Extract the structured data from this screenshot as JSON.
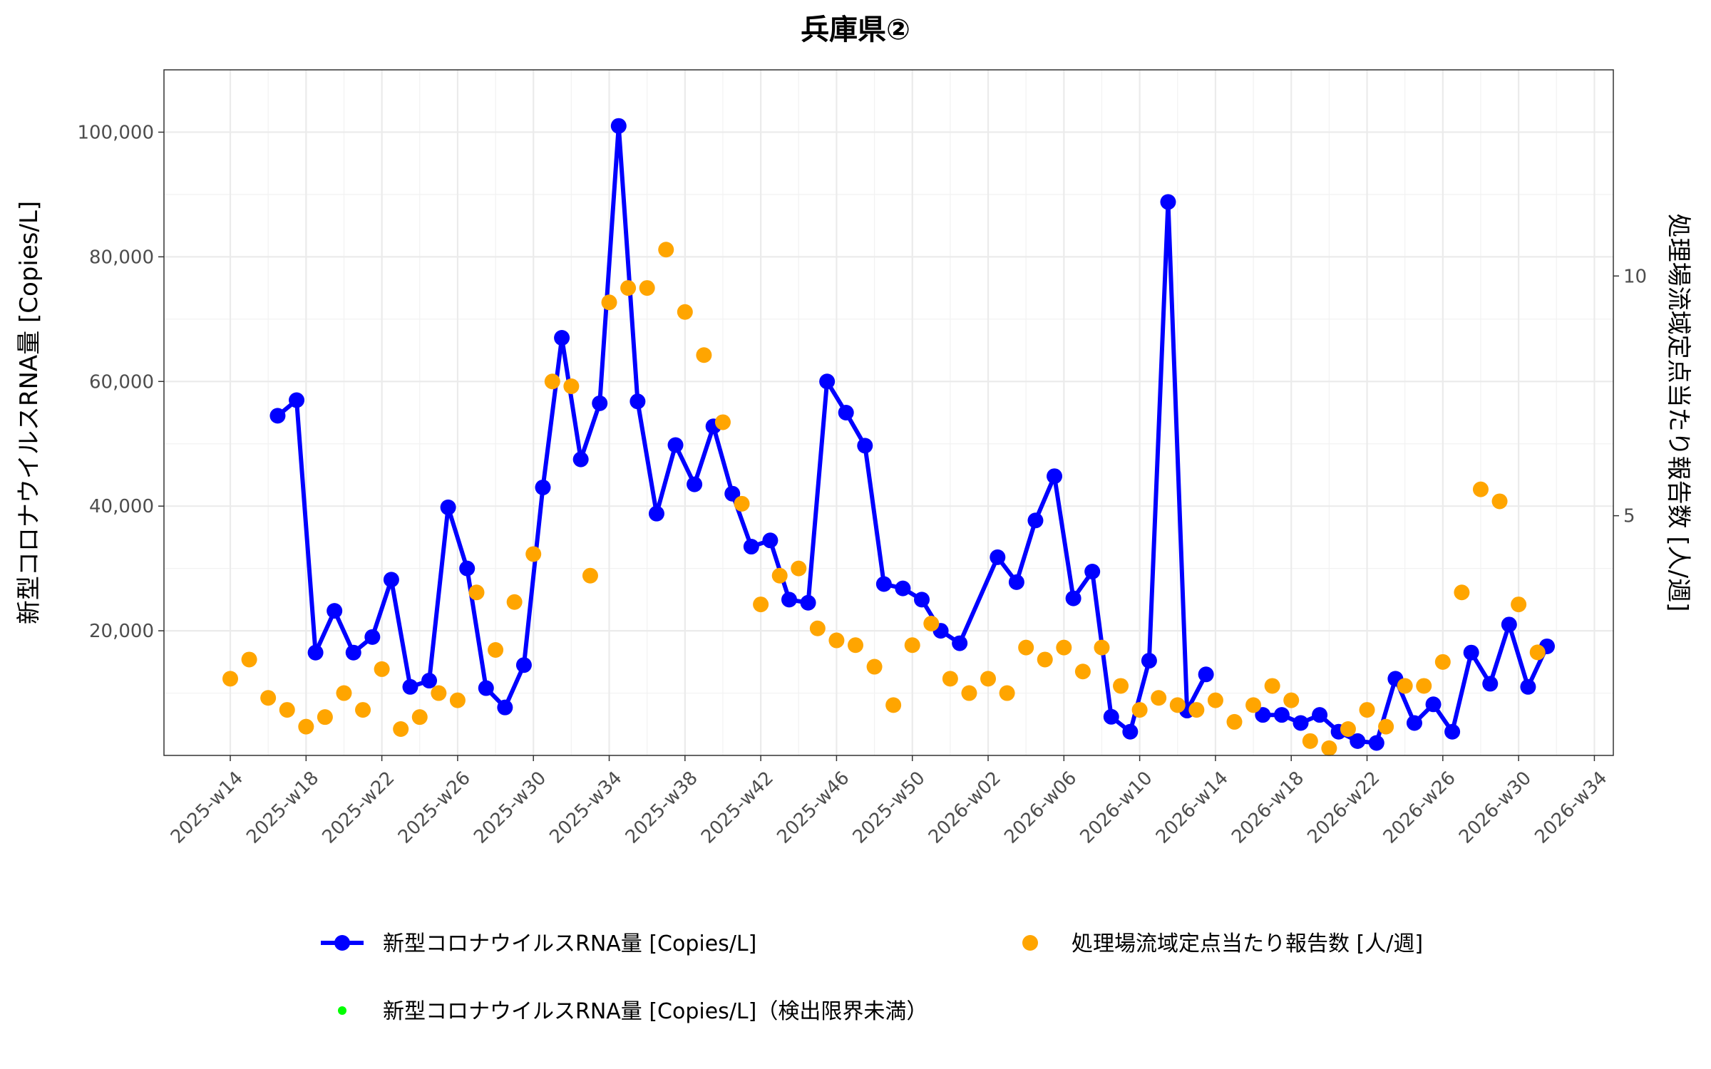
{
  "chart_data": {
    "type": "line",
    "title": "兵庫県②",
    "ylabel": "新型コロナウイルスRNA量 [Copies/L]",
    "y2label": "処理場流域定点当たり報告数 [人/週]",
    "ylim": [
      0,
      110000
    ],
    "y2lim": [
      0,
      14.3
    ],
    "y_ticks": [
      20000,
      40000,
      60000,
      80000,
      100000
    ],
    "y_tick_labels": [
      "20,000",
      "40,000",
      "60,000",
      "80,000",
      "100,000"
    ],
    "y2_ticks": [
      5,
      10
    ],
    "y2_tick_labels": [
      "5",
      "10"
    ],
    "x_range": [
      -3.5,
      73
    ],
    "x_ticks": [
      0,
      4,
      8,
      12,
      16,
      20,
      24,
      28,
      32,
      36,
      40,
      44,
      48,
      52,
      56,
      60,
      64,
      68,
      72
    ],
    "x_tick_labels": [
      "2025-w14",
      "2025-w18",
      "2025-w22",
      "2025-w26",
      "2025-w30",
      "2025-w34",
      "2025-w38",
      "2025-w42",
      "2025-w46",
      "2025-w50",
      "2026-w02",
      "2026-w06",
      "2026-w10",
      "2026-w14",
      "2026-w18",
      "2026-w22",
      "2026-w26",
      "2026-w30",
      "2026-w34"
    ],
    "grid": true,
    "legend_position": "bottom",
    "series": [
      {
        "name": "新型コロナウイルスRNA量 [Copies/L]",
        "axis": "left",
        "style": "line+points",
        "color": "#0000ff",
        "segments": [
          [
            [
              2.5,
              54500
            ],
            [
              3.5,
              57000
            ],
            [
              4.5,
              16500
            ],
            [
              5.5,
              23200
            ],
            [
              6.5,
              16500
            ],
            [
              7.5,
              19000
            ],
            [
              8.5,
              28200
            ],
            [
              9.5,
              11000
            ],
            [
              10.5,
              12000
            ],
            [
              11.5,
              39800
            ],
            [
              12.5,
              30000
            ],
            [
              13.5,
              10800
            ],
            [
              14.5,
              7700
            ],
            [
              15.5,
              14500
            ],
            [
              16.5,
              43000
            ],
            [
              17.5,
              67000
            ],
            [
              18.5,
              47500
            ],
            [
              19.5,
              56500
            ],
            [
              20.5,
              101000
            ],
            [
              21.5,
              56800
            ],
            [
              22.5,
              38800
            ],
            [
              23.5,
              49800
            ],
            [
              24.5,
              43500
            ],
            [
              25.5,
              52800
            ],
            [
              26.5,
              42000
            ],
            [
              27.5,
              33500
            ],
            [
              28.5,
              34500
            ],
            [
              29.5,
              25000
            ],
            [
              30.5,
              24500
            ],
            [
              31.5,
              60000
            ],
            [
              32.5,
              55000
            ],
            [
              33.5,
              49700
            ],
            [
              34.5,
              27500
            ],
            [
              35.5,
              26800
            ],
            [
              36.5,
              25000
            ],
            [
              37.5,
              20000
            ],
            [
              38.5,
              18000
            ],
            [
              40.5,
              31800
            ],
            [
              41.5,
              27800
            ],
            [
              42.5,
              37700
            ],
            [
              43.5,
              44800
            ],
            [
              44.5,
              25200
            ],
            [
              45.5,
              29500
            ],
            [
              46.5,
              6200
            ],
            [
              47.5,
              3800
            ],
            [
              48.5,
              15200
            ],
            [
              49.5,
              88800
            ],
            [
              50.5,
              7200
            ],
            [
              51.5,
              13000
            ]
          ],
          [
            [
              54.5,
              6500
            ],
            [
              55.5,
              6500
            ],
            [
              56.5,
              5200
            ],
            [
              57.5,
              6500
            ],
            [
              58.5,
              3800
            ],
            [
              59.5,
              2300
            ],
            [
              60.5,
              2000
            ],
            [
              61.5,
              12300
            ],
            [
              62.5,
              5200
            ],
            [
              63.5,
              8200
            ],
            [
              64.5,
              3800
            ],
            [
              65.5,
              16500
            ],
            [
              66.5,
              11500
            ],
            [
              67.5,
              21000
            ],
            [
              68.5,
              11000
            ],
            [
              69.5,
              17500
            ]
          ]
        ]
      },
      {
        "name": "処理場流域定点当たり報告数 [人/週]",
        "axis": "right",
        "style": "points",
        "color": "#ffa500",
        "points": [
          [
            0,
            1.6
          ],
          [
            1,
            2.0
          ],
          [
            2,
            1.2
          ],
          [
            3,
            0.95
          ],
          [
            4,
            0.6
          ],
          [
            5,
            0.8
          ],
          [
            6,
            1.3
          ],
          [
            7,
            0.95
          ],
          [
            8,
            1.8
          ],
          [
            9,
            0.55
          ],
          [
            10,
            0.8
          ],
          [
            11,
            1.3
          ],
          [
            12,
            1.15
          ],
          [
            13,
            3.4
          ],
          [
            14,
            2.2
          ],
          [
            15,
            3.2
          ],
          [
            16,
            4.2
          ],
          [
            17,
            7.8
          ],
          [
            18,
            7.7
          ],
          [
            19,
            3.75
          ],
          [
            20,
            9.45
          ],
          [
            21,
            9.75
          ],
          [
            22,
            9.75
          ],
          [
            23,
            10.55
          ],
          [
            24,
            9.25
          ],
          [
            25,
            8.35
          ],
          [
            26,
            6.95
          ],
          [
            27,
            5.25
          ],
          [
            28,
            3.15
          ],
          [
            29,
            3.75
          ],
          [
            30,
            3.9
          ],
          [
            31,
            2.65
          ],
          [
            32,
            2.4
          ],
          [
            33,
            2.3
          ],
          [
            34,
            1.85
          ],
          [
            35,
            1.05
          ],
          [
            36,
            2.3
          ],
          [
            37,
            2.75
          ],
          [
            38,
            1.6
          ],
          [
            39,
            1.3
          ],
          [
            40,
            1.6
          ],
          [
            41,
            1.3
          ],
          [
            42,
            2.25
          ],
          [
            43,
            2.0
          ],
          [
            44,
            2.25
          ],
          [
            45,
            1.75
          ],
          [
            46,
            2.25
          ],
          [
            47,
            1.45
          ],
          [
            48,
            0.95
          ],
          [
            49,
            1.2
          ],
          [
            50,
            1.05
          ],
          [
            51,
            0.95
          ],
          [
            52,
            1.15
          ],
          [
            53,
            0.7
          ],
          [
            54,
            1.05
          ],
          [
            55,
            1.45
          ],
          [
            56,
            1.15
          ],
          [
            57,
            0.3
          ],
          [
            58,
            0.15
          ],
          [
            59,
            0.55
          ],
          [
            60,
            0.95
          ],
          [
            61,
            0.6
          ],
          [
            62,
            1.45
          ],
          [
            63,
            1.45
          ],
          [
            64,
            1.95
          ],
          [
            65,
            3.4
          ],
          [
            66,
            5.55
          ],
          [
            67,
            5.3
          ],
          [
            68,
            3.15
          ],
          [
            69,
            2.15
          ]
        ]
      },
      {
        "name": "新型コロナウイルスRNA量 [Copies/L]（検出限界未満）",
        "axis": "left",
        "style": "points",
        "color": "#00ff00",
        "points": []
      }
    ]
  }
}
